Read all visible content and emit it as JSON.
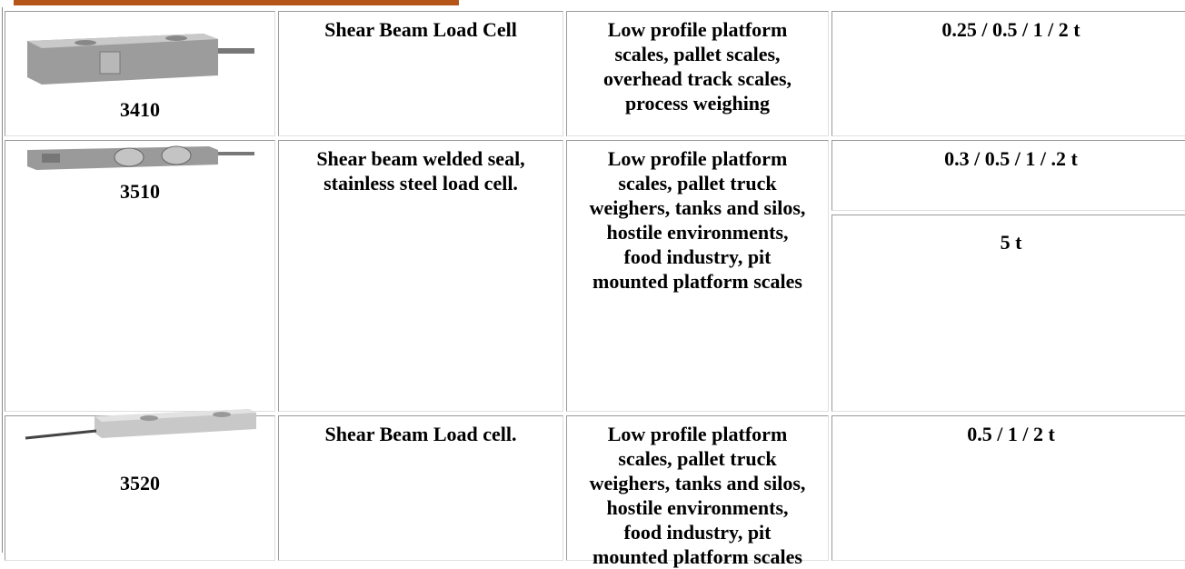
{
  "table": {
    "rows": [
      {
        "model": "3410",
        "description": "Shear Beam Load Cell",
        "application": "Low profile platform scales, pallet scales, overhead track scales, process weighing",
        "capacity": [
          "0.25 / 0.5 / 1 / 2 t"
        ]
      },
      {
        "model": "3510",
        "description": "Shear beam welded seal, stainless steel load cell.",
        "application": "Low profile platform scales, pallet truck weighers, tanks and silos, hostile environments, food industry, pit mounted platform scales",
        "capacity": [
          "0.3 / 0.5 / 1 / .2 t",
          "5 t"
        ]
      },
      {
        "model": "3520",
        "description": "Shear Beam Load cell.",
        "application": "Low profile platform scales, pallet truck weighers, tanks and silos, hostile environments, food industry, pit mounted platform scales",
        "capacity": [
          "0.5 / 1 / 2 t"
        ]
      }
    ]
  }
}
